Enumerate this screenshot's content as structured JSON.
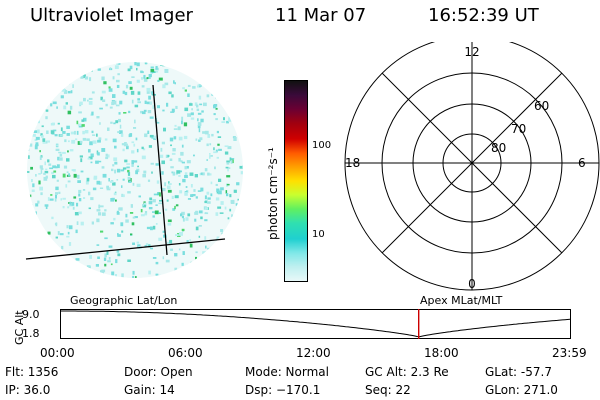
{
  "header": {
    "instrument": "Ultraviolet Imager",
    "date": "11 Mar 07",
    "time": "16:52:39 UT"
  },
  "colorbar": {
    "unit_label": "photon cm⁻²s⁻¹",
    "ticks": [
      "100",
      "10"
    ],
    "colors": [
      "#111111",
      "#3a0a3a",
      "#6a0033",
      "#a00010",
      "#d00000",
      "#ff5a00",
      "#ffa000",
      "#ffe000",
      "#c8ff30",
      "#60f060",
      "#30e0b0",
      "#20d0d0",
      "#80e8e8",
      "#c0f0f0",
      "#e8f8f8"
    ]
  },
  "polar_plot": {
    "mlt_labels": {
      "top": "12",
      "left": "18",
      "right": "6",
      "bottom": "0"
    },
    "lat_labels": [
      "60",
      "70",
      "80"
    ]
  },
  "timeline": {
    "ylabel": "GC Alt",
    "yticks": [
      "9.0",
      "1.8"
    ],
    "left_label": "Geographic Lat/Lon",
    "right_label": "Apex MLat/MLT",
    "xticks": [
      "00:00",
      "06:00",
      "12:00",
      "18:00",
      "23:59"
    ],
    "current_time_fraction": 0.7033,
    "marker_color": "#cc0000"
  },
  "info": {
    "row1": [
      "Flt: 1356",
      "Door: Open",
      "Mode: Normal",
      "GC Alt: 2.3 Re",
      "GLat: -57.7"
    ],
    "row2": [
      "IP: 36.0",
      "Gain: 14",
      "Dsp: −170.1",
      "Seq: 22",
      "GLon: 271.0"
    ]
  }
}
